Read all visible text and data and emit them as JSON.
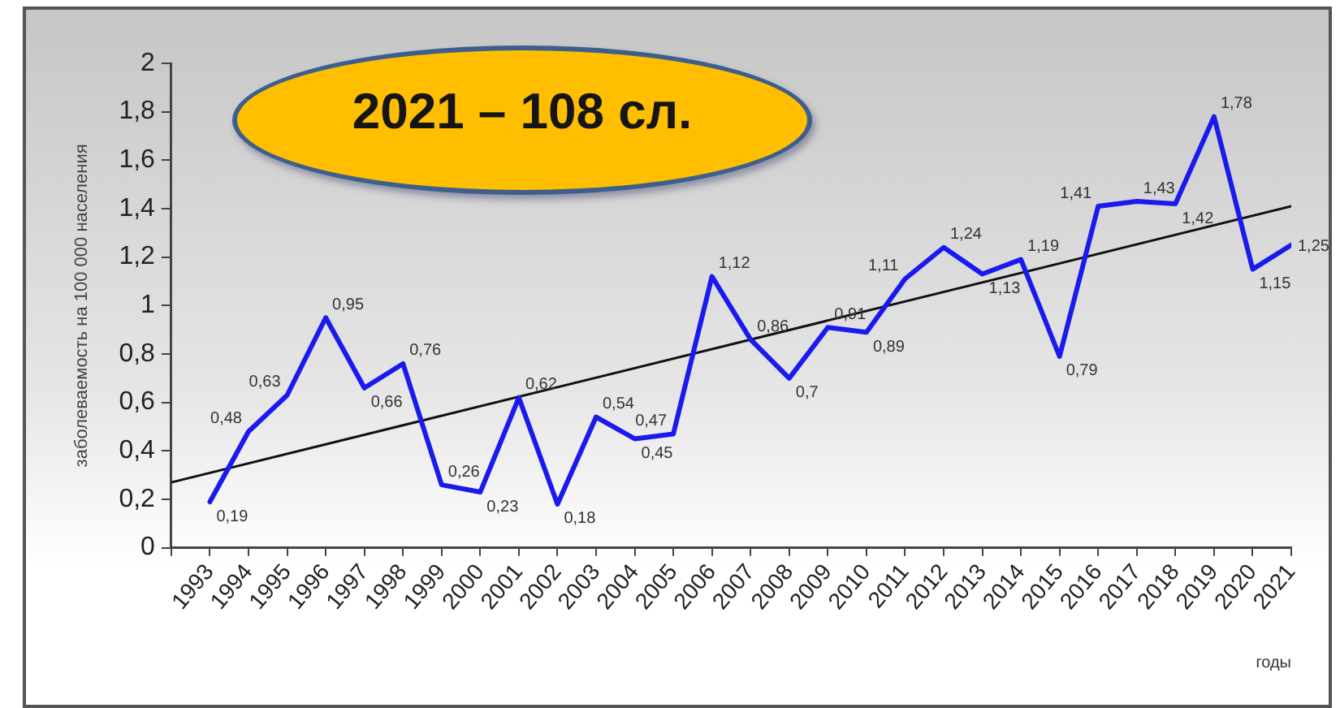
{
  "chart_data": {
    "type": "line",
    "ylabel": "заболеваемость на 100 000 населения",
    "xlabel": "годы",
    "annotations": [
      "2021 – 108 сл."
    ],
    "x": [
      1993,
      1994,
      1995,
      1996,
      1997,
      1998,
      1999,
      2000,
      2001,
      2002,
      2003,
      2004,
      2005,
      2006,
      2007,
      2008,
      2009,
      2010,
      2011,
      2012,
      2013,
      2014,
      2015,
      2016,
      2017,
      2018,
      2019,
      2020,
      2021
    ],
    "series": [
      {
        "color": "#1a1aee",
        "values": [
          0.19,
          0.48,
          0.63,
          0.95,
          0.66,
          0.76,
          0.26,
          0.23,
          0.62,
          0.18,
          0.54,
          0.45,
          0.47,
          1.12,
          0.86,
          0.7,
          0.91,
          0.89,
          1.11,
          1.24,
          1.13,
          1.19,
          0.79,
          1.41,
          1.43,
          1.42,
          1.78,
          1.15,
          1.25
        ],
        "value_labels": [
          "0,19",
          "0,48",
          "0,63",
          "0,95",
          "0,66",
          "0,76",
          "0,26",
          "0,23",
          "0,62",
          "0,18",
          "0,54",
          "0,45",
          "0,47",
          "1,12",
          "0,86",
          "0,7",
          "0,91",
          "0,89",
          "1,11",
          "1,24",
          "1,13",
          "1,19",
          "0,79",
          "1,41",
          "1,43",
          "1,42",
          "1,78",
          "1,15",
          "1,25"
        ]
      },
      {
        "color": "#111111",
        "x": [
          1992,
          2021
        ],
        "values": [
          0.27,
          1.41
        ]
      }
    ],
    "xlim": [
      1992,
      2021
    ],
    "xticks": [
      {
        "value": 1992,
        "label": null
      },
      1993,
      1994,
      1995,
      1996,
      1997,
      1998,
      1999,
      2000,
      2001,
      2002,
      2003,
      2004,
      2005,
      2006,
      2007,
      2008,
      2009,
      2010,
      2011,
      2012,
      2013,
      2014,
      2015,
      2016,
      2017,
      2018,
      2019,
      2020,
      2021
    ],
    "ylim": [
      0,
      2
    ],
    "yticks": [
      0,
      {
        "value": 0.2,
        "label": "0,2"
      },
      {
        "value": 0.4,
        "label": "0,4"
      },
      {
        "value": 0.6,
        "label": "0,6"
      },
      {
        "value": 0.8,
        "label": "0,8"
      },
      1,
      {
        "value": 1.2,
        "label": "1,2"
      },
      {
        "value": 1.4,
        "label": "1,4"
      },
      {
        "value": 1.6,
        "label": "1,6"
      },
      {
        "value": 1.8,
        "label": "1,8"
      },
      2
    ],
    "grid": false,
    "legend": false,
    "marker": "none",
    "line_style": "solid"
  }
}
